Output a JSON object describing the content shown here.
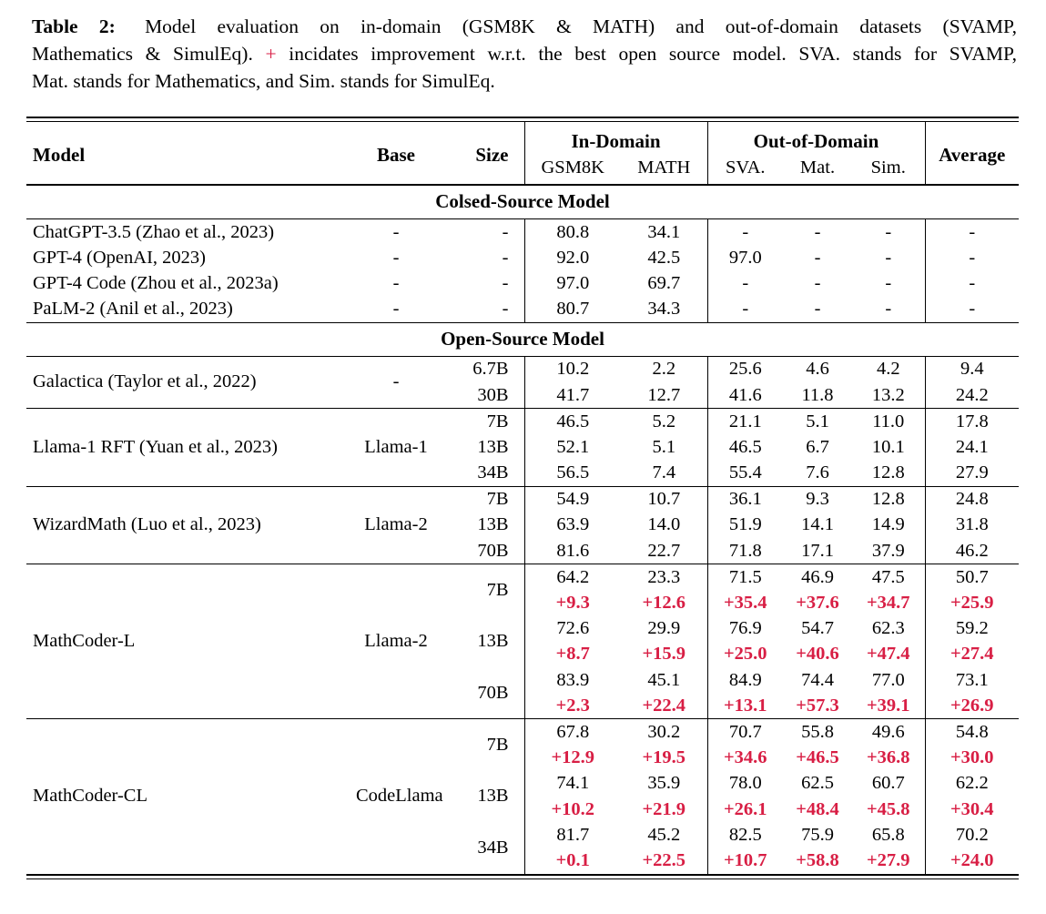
{
  "colors": {
    "delta_red": "#d81e44",
    "text": "#000000"
  },
  "caption": {
    "label": "Table 2:",
    "line1_text": "Model evaluation on in-domain (GSM8K & MATH) and out-of-domain datasets (SVAMP,",
    "line2_before": "Mathematics & SimulEq).",
    "line2_plus": "+",
    "line2_after": "incidates improvement w.r.t. the best open source model. SVA. stands for SVAMP,",
    "line3": "Mat. stands for Mathematics, and Sim. stands for SimulEq."
  },
  "table": {
    "headers": {
      "model": "Model",
      "base": "Base",
      "size": "Size",
      "in_domain": "In-Domain",
      "out_of_domain": "Out-of-Domain",
      "average": "Average",
      "sub": [
        "GSM8K",
        "MATH",
        "SVA.",
        "Mat.",
        "Sim."
      ]
    },
    "sections": [
      {
        "title": "Colsed-Source Model",
        "groups": [
          {
            "model": "ChatGPT-3.5 (Zhao et al., 2023)",
            "base": "-",
            "rows": [
              {
                "size": "-",
                "values": [
                  "80.8",
                  "34.1",
                  "-",
                  "-",
                  "-",
                  "-"
                ]
              }
            ]
          },
          {
            "model": "GPT-4 (OpenAI, 2023)",
            "base": "-",
            "rows": [
              {
                "size": "-",
                "values": [
                  "92.0",
                  "42.5",
                  "97.0",
                  "-",
                  "-",
                  "-"
                ]
              }
            ]
          },
          {
            "model": "GPT-4 Code (Zhou et al., 2023a)",
            "base": "-",
            "rows": [
              {
                "size": "-",
                "values": [
                  "97.0",
                  "69.7",
                  "-",
                  "-",
                  "-",
                  "-"
                ]
              }
            ]
          },
          {
            "model": "PaLM-2 (Anil et al., 2023)",
            "base": "-",
            "rows": [
              {
                "size": "-",
                "values": [
                  "80.7",
                  "34.3",
                  "-",
                  "-",
                  "-",
                  "-"
                ]
              }
            ]
          }
        ]
      },
      {
        "title": "Open-Source Model",
        "groups": [
          {
            "model": "Galactica (Taylor et al., 2022)",
            "base": "-",
            "rows": [
              {
                "size": "6.7B",
                "values": [
                  "10.2",
                  "2.2",
                  "25.6",
                  "4.6",
                  "4.2",
                  "9.4"
                ]
              },
              {
                "size": "30B",
                "values": [
                  "41.7",
                  "12.7",
                  "41.6",
                  "11.8",
                  "13.2",
                  "24.2"
                ]
              }
            ]
          },
          {
            "model": "Llama-1 RFT (Yuan et al., 2023)",
            "base": "Llama-1",
            "rows": [
              {
                "size": "7B",
                "values": [
                  "46.5",
                  "5.2",
                  "21.1",
                  "5.1",
                  "11.0",
                  "17.8"
                ]
              },
              {
                "size": "13B",
                "values": [
                  "52.1",
                  "5.1",
                  "46.5",
                  "6.7",
                  "10.1",
                  "24.1"
                ]
              },
              {
                "size": "34B",
                "values": [
                  "56.5",
                  "7.4",
                  "55.4",
                  "7.6",
                  "12.8",
                  "27.9"
                ]
              }
            ]
          },
          {
            "model": "WizardMath (Luo et al., 2023)",
            "base": "Llama-2",
            "rows": [
              {
                "size": "7B",
                "values": [
                  "54.9",
                  "10.7",
                  "36.1",
                  "9.3",
                  "12.8",
                  "24.8"
                ]
              },
              {
                "size": "13B",
                "values": [
                  "63.9",
                  "14.0",
                  "51.9",
                  "14.1",
                  "14.9",
                  "31.8"
                ]
              },
              {
                "size": "70B",
                "values": [
                  "81.6",
                  "22.7",
                  "71.8",
                  "17.1",
                  "37.9",
                  "46.2"
                ]
              }
            ]
          },
          {
            "model": "MathCoder-L",
            "base": "Llama-2",
            "rows": [
              {
                "size": "7B",
                "values": [
                  "64.2",
                  "23.3",
                  "71.5",
                  "46.9",
                  "47.5",
                  "50.7"
                ],
                "delta": [
                  "+9.3",
                  "+12.6",
                  "+35.4",
                  "+37.6",
                  "+34.7",
                  "+25.9"
                ]
              },
              {
                "size": "13B",
                "values": [
                  "72.6",
                  "29.9",
                  "76.9",
                  "54.7",
                  "62.3",
                  "59.2"
                ],
                "delta": [
                  "+8.7",
                  "+15.9",
                  "+25.0",
                  "+40.6",
                  "+47.4",
                  "+27.4"
                ]
              },
              {
                "size": "70B",
                "values": [
                  "83.9",
                  "45.1",
                  "84.9",
                  "74.4",
                  "77.0",
                  "73.1"
                ],
                "delta": [
                  "+2.3",
                  "+22.4",
                  "+13.1",
                  "+57.3",
                  "+39.1",
                  "+26.9"
                ]
              }
            ]
          },
          {
            "model": "MathCoder-CL",
            "base": "CodeLlama",
            "rows": [
              {
                "size": "7B",
                "values": [
                  "67.8",
                  "30.2",
                  "70.7",
                  "55.8",
                  "49.6",
                  "54.8"
                ],
                "delta": [
                  "+12.9",
                  "+19.5",
                  "+34.6",
                  "+46.5",
                  "+36.8",
                  "+30.0"
                ]
              },
              {
                "size": "13B",
                "values": [
                  "74.1",
                  "35.9",
                  "78.0",
                  "62.5",
                  "60.7",
                  "62.2"
                ],
                "delta": [
                  "+10.2",
                  "+21.9",
                  "+26.1",
                  "+48.4",
                  "+45.8",
                  "+30.4"
                ]
              },
              {
                "size": "34B",
                "values": [
                  "81.7",
                  "45.2",
                  "82.5",
                  "75.9",
                  "65.8",
                  "70.2"
                ],
                "delta": [
                  "+0.1",
                  "+22.5",
                  "+10.7",
                  "+58.8",
                  "+27.9",
                  "+24.0"
                ]
              }
            ]
          }
        ]
      }
    ]
  }
}
